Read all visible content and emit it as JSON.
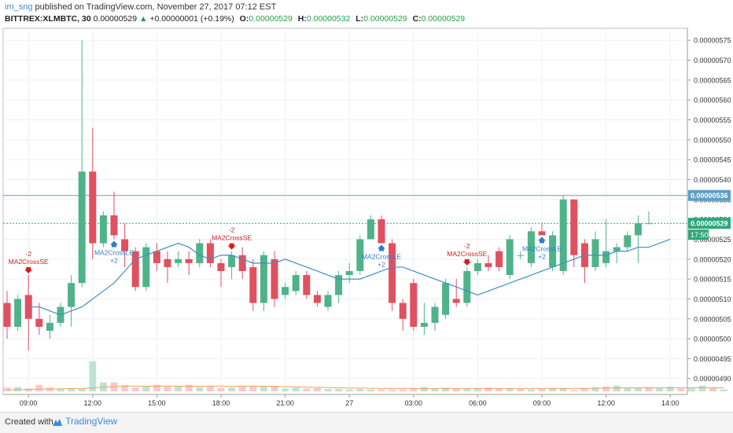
{
  "header": {
    "username": "im_sng",
    "published_text": " published on TradingView.com, November 27, 2017 07:12 EST",
    "symbol": "BITTREX:XLMBTC, 30",
    "last": "0.00000529",
    "change_arrow": "▲",
    "change": "+0.00000001 (+0.19%)",
    "o_label": "O:",
    "o_value": "0.00000529",
    "h_label": "H:",
    "h_value": "0.00000532",
    "l_label": "L:",
    "l_value": "0.00000529",
    "c_label": "C:",
    "c_value": "0.00000529"
  },
  "footer": {
    "created_with": "Created with",
    "brand": "TradingView"
  },
  "colors": {
    "up": "#4fb38a",
    "down": "#e0505f",
    "ma": "#3f8ec9",
    "vol_ma": "#f0a35a",
    "signal_up": "#2b7fd0",
    "signal_down": "#cc2222"
  },
  "chart_data": {
    "type": "candlestick",
    "ylim": [
      4.86e-06,
      5.78e-06
    ],
    "y_ticks": [
      "0.00000490",
      "0.00000495",
      "0.00000500",
      "0.00000505",
      "0.00000510",
      "0.00000515",
      "0.00000520",
      "0.00000525",
      "0.00000530",
      "0.00000535",
      "0.00000540",
      "0.00000545",
      "0.00000550",
      "0.00000555",
      "0.00000560",
      "0.00000565",
      "0.00000570",
      "0.00000575"
    ],
    "x_ticks": [
      "09:00",
      "12:00",
      "15:00",
      "18:00",
      "21:00",
      "27",
      "03:00",
      "06:00",
      "09:00",
      "12:00",
      "14:00"
    ],
    "price_labels": [
      {
        "value": 5.36e-06,
        "text": "0.00000536",
        "color": "#5aa0c8"
      },
      {
        "value": 5.29e-06,
        "text": "0.00000529",
        "color": "#2fa77a"
      }
    ],
    "countdown": "17:50",
    "candles": [
      {
        "o": 5.09e-06,
        "h": 5.12e-06,
        "l": 5e-06,
        "c": 5.03e-06
      },
      {
        "o": 5.03e-06,
        "h": 5.11e-06,
        "l": 5.02e-06,
        "c": 5.1e-06
      },
      {
        "o": 5.11e-06,
        "h": 5.16e-06,
        "l": 4.97e-06,
        "c": 5.05e-06
      },
      {
        "o": 5.05e-06,
        "h": 5.09e-06,
        "l": 5.01e-06,
        "c": 5.03e-06
      },
      {
        "o": 5.02e-06,
        "h": 5.06e-06,
        "l": 5e-06,
        "c": 5.04e-06
      },
      {
        "o": 5.04e-06,
        "h": 5.09e-06,
        "l": 5.03e-06,
        "c": 5.08e-06
      },
      {
        "o": 5.08e-06,
        "h": 5.16e-06,
        "l": 5.03e-06,
        "c": 5.14e-06
      },
      {
        "o": 5.14e-06,
        "h": 5.75e-06,
        "l": 5.13e-06,
        "c": 5.42e-06
      },
      {
        "o": 5.42e-06,
        "h": 5.53e-06,
        "l": 5.2e-06,
        "c": 5.24e-06
      },
      {
        "o": 5.24e-06,
        "h": 5.32e-06,
        "l": 5.23e-06,
        "c": 5.31e-06
      },
      {
        "o": 5.31e-06,
        "h": 5.37e-06,
        "l": 5.25e-06,
        "c": 5.26e-06
      },
      {
        "o": 5.25e-06,
        "h": 5.29e-06,
        "l": 5.18e-06,
        "c": 5.22e-06
      },
      {
        "o": 5.22e-06,
        "h": 5.23e-06,
        "l": 5.12e-06,
        "c": 5.13e-06
      },
      {
        "o": 5.13e-06,
        "h": 5.24e-06,
        "l": 5.12e-06,
        "c": 5.23e-06
      },
      {
        "o": 5.22e-06,
        "h": 5.24e-06,
        "l": 5.17e-06,
        "c": 5.19e-06
      },
      {
        "o": 5.2e-06,
        "h": 5.22e-06,
        "l": 5.14e-06,
        "c": 5.18e-06
      },
      {
        "o": 5.19e-06,
        "h": 5.22e-06,
        "l": 5.18e-06,
        "c": 5.2e-06
      },
      {
        "o": 5.2e-06,
        "h": 5.22e-06,
        "l": 5.16e-06,
        "c": 5.19e-06
      },
      {
        "o": 5.19e-06,
        "h": 5.25e-06,
        "l": 5.18e-06,
        "c": 5.24e-06
      },
      {
        "o": 5.24e-06,
        "h": 5.25e-06,
        "l": 5.18e-06,
        "c": 5.19e-06
      },
      {
        "o": 5.19e-06,
        "h": 5.2e-06,
        "l": 5.13e-06,
        "c": 5.17e-06
      },
      {
        "o": 5.18e-06,
        "h": 5.22e-06,
        "l": 5.15e-06,
        "c": 5.21e-06
      },
      {
        "o": 5.21e-06,
        "h": 5.23e-06,
        "l": 5.15e-06,
        "c": 5.17e-06
      },
      {
        "o": 5.18e-06,
        "h": 5.2e-06,
        "l": 5.07e-06,
        "c": 5.09e-06
      },
      {
        "o": 5.09e-06,
        "h": 5.22e-06,
        "l": 5.07e-06,
        "c": 5.21e-06
      },
      {
        "o": 5.2e-06,
        "h": 5.22e-06,
        "l": 5.08e-06,
        "c": 5.1e-06
      },
      {
        "o": 5.11e-06,
        "h": 5.14e-06,
        "l": 5.1e-06,
        "c": 5.13e-06
      },
      {
        "o": 5.12e-06,
        "h": 5.17e-06,
        "l": 5.11e-06,
        "c": 5.16e-06
      },
      {
        "o": 5.16e-06,
        "h": 5.17e-06,
        "l": 5.1e-06,
        "c": 5.11e-06
      },
      {
        "o": 5.11e-06,
        "h": 5.12e-06,
        "l": 5.08e-06,
        "c": 5.09e-06
      },
      {
        "o": 5.08e-06,
        "h": 5.12e-06,
        "l": 5.07e-06,
        "c": 5.11e-06
      },
      {
        "o": 5.11e-06,
        "h": 5.17e-06,
        "l": 5.09e-06,
        "c": 5.16e-06
      },
      {
        "o": 5.16e-06,
        "h": 5.19e-06,
        "l": 5.14e-06,
        "c": 5.17e-06
      },
      {
        "o": 5.17e-06,
        "h": 5.26e-06,
        "l": 5.16e-06,
        "c": 5.25e-06
      },
      {
        "o": 5.25e-06,
        "h": 5.31e-06,
        "l": 5.25e-06,
        "c": 5.3e-06
      },
      {
        "o": 5.3e-06,
        "h": 5.31e-06,
        "l": 5.24e-06,
        "c": 5.24e-06
      },
      {
        "o": 5.24e-06,
        "h": 5.25e-06,
        "l": 5.07e-06,
        "c": 5.09e-06
      },
      {
        "o": 5.09e-06,
        "h": 5.1e-06,
        "l": 5.02e-06,
        "c": 5.05e-06
      },
      {
        "o": 5.14e-06,
        "h": 5.15e-06,
        "l": 5.02e-06,
        "c": 5.03e-06
      },
      {
        "o": 5.03e-06,
        "h": 5.09e-06,
        "l": 5.01e-06,
        "c": 5.04e-06
      },
      {
        "o": 5.04e-06,
        "h": 5.09e-06,
        "l": 5.02e-06,
        "c": 5.08e-06
      },
      {
        "o": 5.06e-06,
        "h": 5.15e-06,
        "l": 5.05e-06,
        "c": 5.14e-06
      },
      {
        "o": 5.1e-06,
        "h": 5.15e-06,
        "l": 5.08e-06,
        "c": 5.09e-06
      },
      {
        "o": 5.09e-06,
        "h": 5.18e-06,
        "l": 5.08e-06,
        "c": 5.17e-06
      },
      {
        "o": 5.17e-06,
        "h": 5.2e-06,
        "l": 5.16e-06,
        "c": 5.19e-06
      },
      {
        "o": 5.19e-06,
        "h": 5.21e-06,
        "l": 5.17e-06,
        "c": 5.18e-06
      },
      {
        "o": 5.22e-06,
        "h": 5.23e-06,
        "l": 5.17e-06,
        "c": 5.18e-06
      },
      {
        "o": 5.16e-06,
        "h": 5.26e-06,
        "l": 5.15e-06,
        "c": 5.25e-06
      },
      {
        "o": 5.21e-06,
        "h": 5.22e-06,
        "l": 5.2e-06,
        "c": 5.21e-06
      },
      {
        "o": 5.19e-06,
        "h": 5.28e-06,
        "l": 5.18e-06,
        "c": 5.27e-06
      },
      {
        "o": 5.27e-06,
        "h": 5.29e-06,
        "l": 5.26e-06,
        "c": 5.26e-06
      },
      {
        "o": 5.18e-06,
        "h": 5.27e-06,
        "l": 5.17e-06,
        "c": 5.26e-06
      },
      {
        "o": 5.17e-06,
        "h": 5.36e-06,
        "l": 5.16e-06,
        "c": 5.35e-06
      },
      {
        "o": 5.35e-06,
        "h": 5.35e-06,
        "l": 5.18e-06,
        "c": 5.21e-06
      },
      {
        "o": 5.24e-06,
        "h": 5.25e-06,
        "l": 5.14e-06,
        "c": 5.18e-06
      },
      {
        "o": 5.18e-06,
        "h": 5.27e-06,
        "l": 5.17e-06,
        "c": 5.25e-06
      },
      {
        "o": 5.19e-06,
        "h": 5.3e-06,
        "l": 5.18e-06,
        "c": 5.22e-06
      },
      {
        "o": 5.22e-06,
        "h": 5.24e-06,
        "l": 5.19e-06,
        "c": 5.23e-06
      },
      {
        "o": 5.23e-06,
        "h": 5.27e-06,
        "l": 5.22e-06,
        "c": 5.26e-06
      },
      {
        "o": 5.26e-06,
        "h": 5.31e-06,
        "l": 5.19e-06,
        "c": 5.29e-06
      },
      {
        "o": 5.29e-06,
        "h": 5.32e-06,
        "l": 5.29e-06,
        "c": 5.29e-06
      }
    ],
    "ma": [
      5.08e-06,
      5.08e-06,
      5.07e-06,
      5.06e-06,
      5.07e-06,
      5.08e-06,
      5.1e-06,
      5.12e-06,
      5.14e-06,
      5.17e-06,
      5.2e-06,
      5.21e-06,
      5.22e-06,
      5.23e-06,
      5.24e-06,
      5.23e-06,
      5.21e-06,
      5.2e-06,
      5.21e-06,
      5.21e-06,
      5.2e-06,
      5.19e-06,
      5.19e-06,
      5.19e-06,
      5.2e-06,
      5.19e-06,
      5.18e-06,
      5.17e-06,
      5.16e-06,
      5.15e-06,
      5.15e-06,
      5.15e-06,
      5.16e-06,
      5.17e-06,
      5.18e-06,
      5.18e-06,
      5.17e-06,
      5.16e-06,
      5.15e-06,
      5.14e-06,
      5.13e-06,
      5.12e-06,
      5.11e-06,
      5.12e-06,
      5.13e-06,
      5.14e-06,
      5.15e-06,
      5.16e-06,
      5.17e-06,
      5.18e-06,
      5.19e-06,
      5.2e-06,
      5.21e-06,
      5.21e-06,
      5.21e-06,
      5.22e-06,
      5.22e-06,
      5.23e-06,
      5.23e-06,
      5.24e-06,
      5.25e-06
    ],
    "volumes": [
      8,
      9,
      6,
      14,
      8,
      5,
      6,
      6,
      64,
      19,
      19,
      13,
      8,
      10,
      14,
      10,
      11,
      14,
      9,
      10,
      7,
      8,
      10,
      11,
      10,
      12,
      6,
      8,
      6,
      7,
      5,
      5,
      4,
      5,
      4,
      4,
      4,
      4,
      7,
      9,
      6,
      8,
      6,
      6,
      6,
      8,
      6,
      6,
      5,
      4,
      5,
      7,
      7,
      3,
      7,
      9,
      10,
      12,
      7,
      7,
      9,
      8,
      10,
      6,
      6,
      12,
      8,
      4
    ],
    "vol_up": [
      false,
      true,
      false,
      false,
      false,
      true,
      true,
      true,
      true,
      true,
      false,
      false,
      false,
      true,
      false,
      false,
      true,
      false,
      true,
      false,
      false,
      true,
      false,
      false,
      true,
      false,
      true,
      true,
      false,
      false,
      true,
      true,
      true,
      true,
      true,
      false,
      false,
      false,
      false,
      true,
      true,
      true,
      false,
      true,
      true,
      false,
      false,
      true,
      false,
      true,
      false,
      true,
      true,
      false,
      false,
      true,
      false,
      true,
      true,
      true,
      false,
      true,
      true,
      false,
      true,
      true,
      false,
      true
    ],
    "vol_ma": [
      3,
      3.5,
      4,
      4.5,
      5,
      5.5,
      6,
      6,
      7,
      9,
      10,
      11,
      11,
      11,
      11,
      11,
      11,
      11,
      11,
      11,
      11,
      11,
      11,
      11,
      11,
      10.5,
      10,
      9.5,
      9,
      8.5,
      8,
      7.5,
      7,
      6.8,
      6.5,
      6.3,
      6,
      6,
      6,
      6,
      6,
      6,
      6,
      6,
      6,
      6,
      6,
      6,
      6,
      6,
      6,
      6,
      6,
      6,
      6,
      6.5,
      7,
      7,
      7.5,
      7.5,
      7.5,
      7.5,
      7.5,
      7.5,
      7.5,
      7.5,
      7.5,
      7.5
    ],
    "signals": [
      {
        "bar": 2,
        "dir": "short",
        "qty": "-2",
        "label": "MA2CrossSE"
      },
      {
        "bar": 10,
        "dir": "long",
        "qty": "+2",
        "label": "MA2CrossLE"
      },
      {
        "bar": 21,
        "dir": "short",
        "qty": "-2",
        "label": "MA2CrossSE"
      },
      {
        "bar": 35,
        "dir": "long",
        "qty": "+2",
        "label": "MA2CrossLE"
      },
      {
        "bar": 43,
        "dir": "short",
        "qty": "-2",
        "label": "MA2CrossSE"
      },
      {
        "bar": 50,
        "dir": "long",
        "qty": "+2",
        "label": "MA2CrossLE"
      }
    ]
  }
}
